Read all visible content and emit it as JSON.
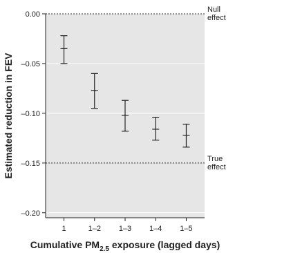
{
  "chart_data": {
    "type": "errorbar",
    "categories": [
      "1",
      "1–2",
      "1–3",
      "1–4",
      "1–5"
    ],
    "series": [
      {
        "values": [
          -0.035,
          -0.077,
          -0.102,
          -0.116,
          -0.122
        ],
        "lower": [
          -0.05,
          -0.095,
          -0.118,
          -0.127,
          -0.134
        ],
        "upper": [
          -0.022,
          -0.06,
          -0.087,
          -0.104,
          -0.111
        ]
      }
    ],
    "xlabel_prefix": "Cumulative PM",
    "xlabel_sub": "2.5",
    "xlabel_suffix": " exposure (lagged days)",
    "ylabel": "Estimated reduction in FEV",
    "ylim": [
      -0.205,
      0.0
    ],
    "yticks": [
      0.0,
      -0.05,
      -0.1,
      -0.15,
      -0.2
    ],
    "ytick_labels": [
      "0.00",
      "–0.05",
      "–0.10",
      "–0.15",
      "–0.20"
    ],
    "reference_lines": [
      {
        "value": 0.0,
        "label_lines": [
          "Null",
          "effect"
        ]
      },
      {
        "value": -0.15,
        "label_lines": [
          "True",
          "effect"
        ]
      }
    ],
    "grid": true,
    "colors": {
      "plot_background": "#e6e6e6",
      "grid": "#ffffff",
      "marks": "#222222"
    }
  }
}
